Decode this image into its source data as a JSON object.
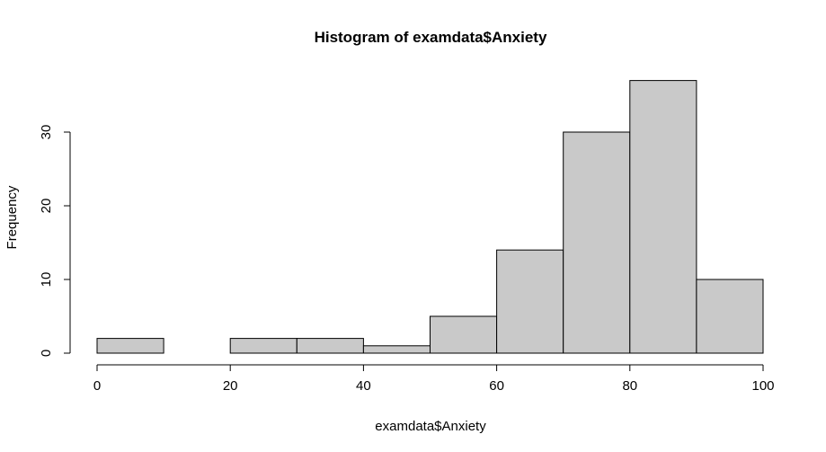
{
  "chart_data": {
    "type": "bar",
    "title": "Histogram of examdata$Anxiety",
    "xlabel": "examdata$Anxiety",
    "ylabel": "Frequency",
    "bins": [
      {
        "start": 0,
        "end": 10,
        "count": 2
      },
      {
        "start": 10,
        "end": 20,
        "count": 0
      },
      {
        "start": 20,
        "end": 30,
        "count": 2
      },
      {
        "start": 30,
        "end": 40,
        "count": 2
      },
      {
        "start": 40,
        "end": 50,
        "count": 1
      },
      {
        "start": 50,
        "end": 60,
        "count": 5
      },
      {
        "start": 60,
        "end": 70,
        "count": 14
      },
      {
        "start": 70,
        "end": 80,
        "count": 30
      },
      {
        "start": 80,
        "end": 90,
        "count": 37
      },
      {
        "start": 90,
        "end": 100,
        "count": 10
      }
    ],
    "xlim": [
      0,
      100
    ],
    "ylim": [
      0,
      37
    ],
    "x_ticks": [
      0,
      20,
      40,
      60,
      80,
      100
    ],
    "x_tick_labels": [
      "0",
      "20",
      "40",
      "60",
      "80",
      "100"
    ],
    "y_ticks": [
      0,
      10,
      20,
      30
    ],
    "y_tick_labels": [
      "0",
      "10",
      "20",
      "30"
    ],
    "bar_color": "#c9c9c9",
    "grid": false
  }
}
